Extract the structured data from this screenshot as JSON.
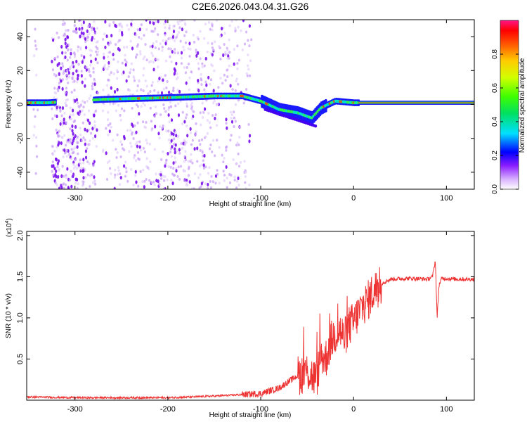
{
  "chart_data": [
    {
      "type": "heatmap",
      "title": "C2E6.2026.043.04.31.G26",
      "xlabel": "Height of straight line (km)",
      "ylabel": "Frequency (Hz)",
      "xlim": [
        -352,
        130
      ],
      "ylim": [
        -50,
        50
      ],
      "xticks": [
        "-300",
        "-200",
        "-100",
        "0",
        "100"
      ],
      "yticks": [
        "-40",
        "-20",
        "0",
        "20",
        "40"
      ],
      "colorbar": {
        "label": "Normalized spectral amplitude",
        "range": [
          0,
          1
        ],
        "ticks": [
          "0.0",
          "0.2",
          "0.4",
          "0.6",
          "0.8"
        ]
      },
      "ridge": {
        "description_points": [
          [
            -352,
            1
          ],
          [
            -330,
            1
          ],
          [
            -270,
            3
          ],
          [
            -200,
            4
          ],
          [
            -150,
            5
          ],
          [
            -120,
            5
          ],
          [
            -100,
            2
          ],
          [
            -80,
            -3
          ],
          [
            -60,
            -5
          ],
          [
            -45,
            -8
          ],
          [
            -35,
            -2
          ],
          [
            -20,
            2
          ],
          [
            0,
            1
          ],
          [
            130,
            1
          ]
        ]
      }
    },
    {
      "type": "line",
      "title": "",
      "xlabel": "Height of straight line (km)",
      "ylabel": "SNR (10 * v/v)",
      "yscale_label": "(x10",
      "yscale_exp": "4",
      "yscale_close": ")",
      "xlim": [
        -352,
        130
      ],
      "ylim": [
        0,
        2.05
      ],
      "xticks": [
        "-300",
        "-200",
        "-100",
        "0",
        "100"
      ],
      "yticks": [
        "0.5",
        "1.0",
        "1.5",
        "2.0"
      ],
      "series": [
        {
          "name": "SNR",
          "color": "#ee3333",
          "x": [
            -352,
            -300,
            -200,
            -150,
            -100,
            -80,
            -60,
            -50,
            -40,
            -35,
            -30,
            -25,
            -20,
            -15,
            -10,
            -5,
            0,
            5,
            10,
            15,
            20,
            30,
            40,
            60,
            80,
            85,
            88,
            90,
            92,
            95,
            110,
            130
          ],
          "y": [
            0.04,
            0.03,
            0.03,
            0.05,
            0.08,
            0.15,
            0.3,
            0.35,
            0.25,
            0.55,
            0.5,
            0.7,
            0.8,
            0.85,
            0.75,
            0.9,
            0.95,
            1.05,
            1.15,
            1.2,
            1.3,
            1.42,
            1.47,
            1.48,
            1.47,
            1.5,
            1.7,
            1.0,
            1.4,
            1.48,
            1.47,
            1.47
          ]
        }
      ]
    }
  ]
}
